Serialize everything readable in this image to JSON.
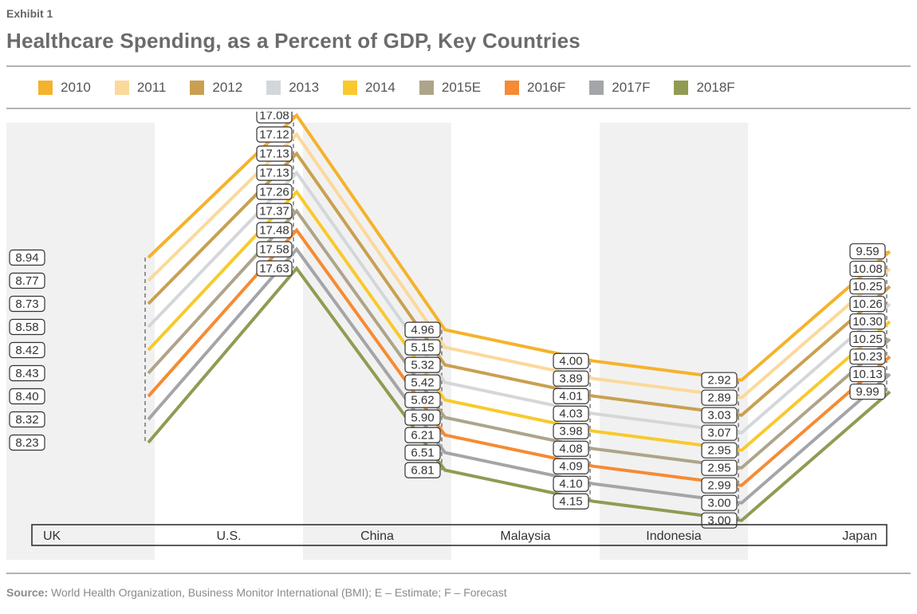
{
  "header": {
    "exhibit": "Exhibit 1",
    "title": "Healthcare Spending, as a Percent of GDP, Key Countries"
  },
  "footer": {
    "source_label": "Source:",
    "source_text": " World Health Organization, Business Monitor International (BMI); E – Estimate; F – Forecast"
  },
  "chart_data": {
    "type": "line",
    "title": "Healthcare Spending, as a Percent of GDP, Key Countries",
    "categories": [
      "UK",
      "U.S.",
      "China",
      "Malaysia",
      "Indonesia",
      "Japan"
    ],
    "shaded_columns": [
      "UK",
      "China",
      "Indonesia"
    ],
    "legend_placement": "top",
    "grid": false,
    "series": [
      {
        "name": "2010",
        "color": "#f5b22b",
        "values": [
          "8.94",
          "17.08",
          "4.96",
          "4.00",
          "2.92",
          "9.59"
        ]
      },
      {
        "name": "2011",
        "color": "#fcd89a",
        "values": [
          "8.77",
          "17.12",
          "5.15",
          "3.89",
          "2.89",
          "10.08"
        ]
      },
      {
        "name": "2012",
        "color": "#c9a050",
        "values": [
          "8.73",
          "17.13",
          "5.32",
          "4.01",
          "3.03",
          "10.25"
        ]
      },
      {
        "name": "2013",
        "color": "#d4d7da",
        "values": [
          "8.58",
          "17.13",
          "5.42",
          "4.03",
          "3.07",
          "10.26"
        ]
      },
      {
        "name": "2014",
        "color": "#f9c92c",
        "values": [
          "8.42",
          "17.26",
          "5.62",
          "3.98",
          "2.95",
          "10.30"
        ]
      },
      {
        "name": "2015E",
        "color": "#aea48a",
        "values": [
          "8.43",
          "17.37",
          "5.90",
          "4.08",
          "2.95",
          "10.25"
        ]
      },
      {
        "name": "2016F",
        "color": "#f58b34",
        "values": [
          "8.40",
          "17.48",
          "6.21",
          "4.09",
          "2.99",
          "10.23"
        ]
      },
      {
        "name": "2017F",
        "color": "#a3a5a8",
        "values": [
          "8.32",
          "17.58",
          "6.51",
          "4.10",
          "3.00",
          "10.13"
        ]
      },
      {
        "name": "2018F",
        "color": "#929a52",
        "values": [
          "8.23",
          "17.63",
          "6.81",
          "4.15",
          "3.00",
          "9.99"
        ]
      }
    ]
  }
}
